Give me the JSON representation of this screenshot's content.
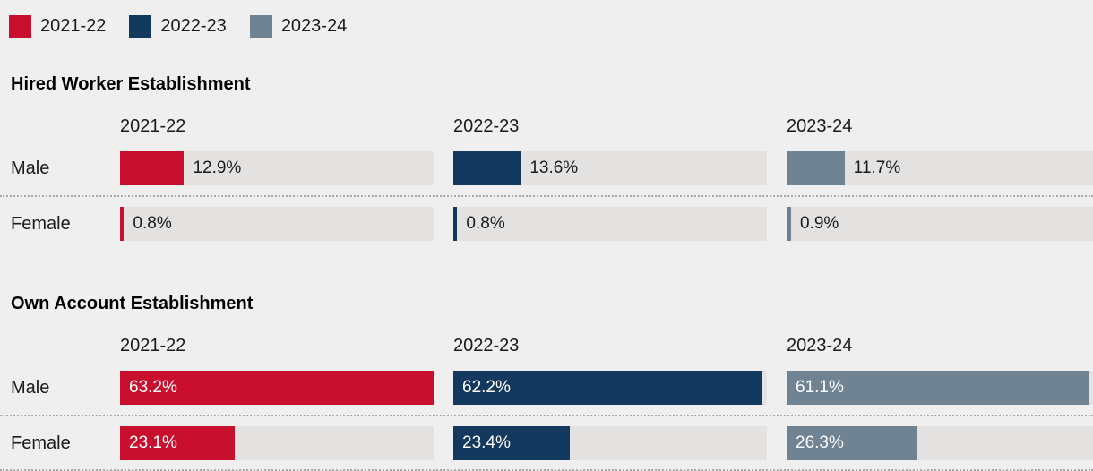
{
  "legend": {
    "items": [
      {
        "label": "2021-22",
        "color": "#c8102e"
      },
      {
        "label": "2022-23",
        "color": "#14395e"
      },
      {
        "label": "2023-24",
        "color": "#6f8392"
      }
    ]
  },
  "colors": {
    "background": "#f0efef",
    "track": "#e4e2e1",
    "text": "#1a1a1a",
    "divider": "#a9a8a7",
    "bar_label_inside": "#ffffff"
  },
  "chart_data": {
    "type": "bar",
    "orientation": "horizontal",
    "unit": "%",
    "years": [
      "2021-22",
      "2022-23",
      "2023-24"
    ],
    "series_colors": [
      "#c8102e",
      "#14395e",
      "#6f8392"
    ],
    "xlim": [
      0,
      63.2
    ],
    "legend_position": "top-left",
    "grid": false,
    "sections": [
      {
        "title": "Hired Worker Establishment",
        "rows": [
          {
            "label": "Male",
            "values": [
              12.9,
              13.6,
              11.7
            ],
            "display": [
              "12.9%",
              "13.6%",
              "11.7%"
            ]
          },
          {
            "label": "Female",
            "values": [
              0.8,
              0.8,
              0.9
            ],
            "display": [
              "0.8%",
              "0.8%",
              "0.9%"
            ]
          }
        ]
      },
      {
        "title": "Own Account Establishment",
        "rows": [
          {
            "label": "Male",
            "values": [
              63.2,
              62.2,
              61.1
            ],
            "display": [
              "63.2%",
              "62.2%",
              "61.1%"
            ]
          },
          {
            "label": "Female",
            "values": [
              23.1,
              23.4,
              26.3
            ],
            "display": [
              "23.1%",
              "23.4%",
              "26.3%"
            ]
          }
        ]
      }
    ]
  }
}
